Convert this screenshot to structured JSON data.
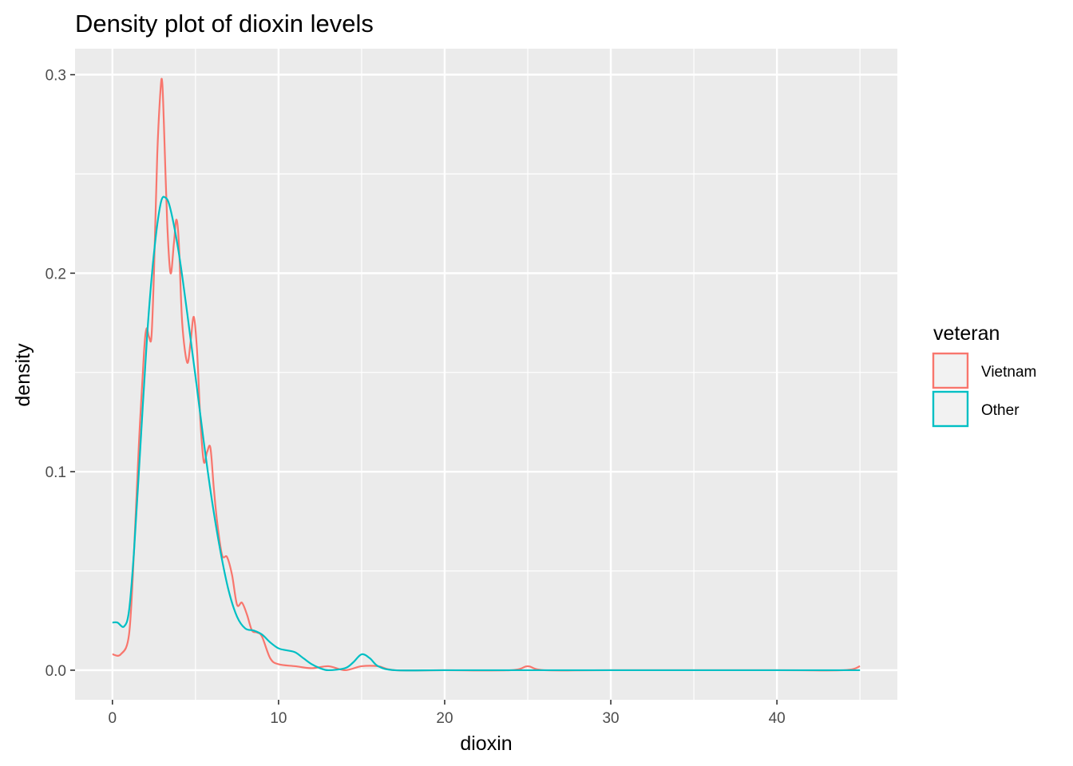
{
  "chart_data": {
    "type": "line",
    "title": "Density plot of dioxin levels",
    "xlabel": "dioxin",
    "ylabel": "density",
    "xlim": [
      -2.25,
      47.25
    ],
    "ylim": [
      -0.0149,
      0.3131
    ],
    "x_ticks": [
      0,
      10,
      20,
      30,
      40
    ],
    "y_ticks": [
      0.0,
      0.1,
      0.2,
      0.3
    ],
    "x_tick_labels": [
      "0",
      "10",
      "20",
      "30",
      "40"
    ],
    "y_tick_labels": [
      "0.0",
      "0.1",
      "0.2",
      "0.3"
    ],
    "grid": true,
    "legend": {
      "title": "veteran",
      "position": "right",
      "entries": [
        "Vietnam",
        "Other"
      ]
    },
    "series": [
      {
        "name": "Vietnam",
        "color": "#F8766D",
        "x": [
          0,
          0.5,
          1.0,
          1.3,
          1.6,
          1.9,
          2.05,
          2.2,
          2.35,
          2.5,
          2.7,
          2.9,
          3.0,
          3.1,
          3.3,
          3.5,
          3.7,
          3.85,
          4.0,
          4.2,
          4.5,
          4.7,
          4.9,
          5.1,
          5.3,
          5.5,
          5.7,
          5.9,
          6.1,
          6.3,
          6.6,
          6.9,
          7.2,
          7.5,
          7.8,
          8.1,
          8.4,
          8.7,
          9.0,
          9.5,
          10.0,
          11.0,
          12.0,
          13.0,
          14.0,
          15.0,
          16.0,
          17.0,
          20.0,
          24.0,
          25.0,
          26.0,
          30.0,
          40.0,
          44.0,
          45.0
        ],
        "y": [
          0.008,
          0.008,
          0.018,
          0.06,
          0.115,
          0.16,
          0.172,
          0.168,
          0.168,
          0.2,
          0.26,
          0.293,
          0.296,
          0.275,
          0.225,
          0.2,
          0.215,
          0.227,
          0.215,
          0.175,
          0.155,
          0.165,
          0.178,
          0.16,
          0.125,
          0.105,
          0.11,
          0.112,
          0.092,
          0.075,
          0.058,
          0.057,
          0.048,
          0.033,
          0.034,
          0.028,
          0.02,
          0.019,
          0.017,
          0.006,
          0.003,
          0.002,
          0.001,
          0.002,
          0.0,
          0.002,
          0.002,
          0.0,
          0.0,
          0.0,
          0.002,
          0.0,
          0.0,
          0.0,
          0.0,
          0.002
        ]
      },
      {
        "name": "Other",
        "color": "#00BFC4",
        "x": [
          0,
          0.3,
          0.7,
          1.0,
          1.3,
          1.7,
          2.1,
          2.5,
          2.9,
          3.2,
          3.5,
          4.0,
          4.5,
          5.0,
          5.5,
          6.0,
          6.5,
          7.0,
          7.5,
          8.0,
          8.5,
          9.0,
          9.5,
          10.0,
          10.5,
          11.0,
          11.5,
          12.0,
          12.5,
          13.0,
          14.0,
          14.5,
          15.0,
          15.5,
          16.0,
          17.0,
          20.0,
          25.0,
          30.0,
          40.0,
          45.0
        ],
        "y": [
          0.024,
          0.024,
          0.022,
          0.03,
          0.06,
          0.115,
          0.17,
          0.21,
          0.235,
          0.238,
          0.232,
          0.21,
          0.18,
          0.148,
          0.115,
          0.085,
          0.06,
          0.04,
          0.027,
          0.021,
          0.02,
          0.018,
          0.014,
          0.011,
          0.01,
          0.009,
          0.006,
          0.003,
          0.001,
          0.0,
          0.001,
          0.004,
          0.008,
          0.006,
          0.002,
          0.0,
          0.0,
          0.0,
          0.0,
          0.0,
          0.0
        ]
      }
    ]
  }
}
